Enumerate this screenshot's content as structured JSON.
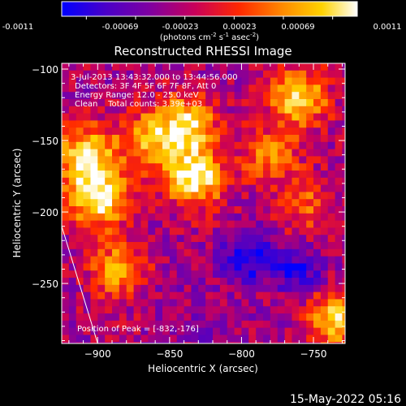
{
  "colorbar": {
    "ticks": [
      "-0.0011",
      "-0.00069",
      "-0.00023",
      "0.00023",
      "0.00069",
      "0.0011"
    ],
    "units_main": "(photons cm",
    "units_exp1": "-2",
    "units_mid": " s",
    "units_exp2": "-1",
    "units_mid2": " asec",
    "units_exp3": "-2",
    "units_end": ")"
  },
  "title": "Reconstructed RHESSI Image",
  "annotations": {
    "time": "3-Jul-2013 13:43:32.000 to 13:44:56.000",
    "detectors": "Detectors: 3F 4F 5F 6F 7F 8F, Att 0",
    "energy": "Energy Range: 12.0 - 25.0 keV",
    "clean": "Clean    Total counts: 3.39e+03",
    "peak": "Position of Peak = [-832,-176]"
  },
  "footer": {
    "date": "15-May-2022 05:16"
  },
  "chart_data": {
    "type": "heatmap",
    "title": "Reconstructed RHESSI Image",
    "xlabel": "Heliocentric X (arcsec)",
    "ylabel": "Heliocentric Y (arcsec)",
    "xlim": [
      -925,
      -728
    ],
    "ylim": [
      -292,
      -96
    ],
    "x_ticks": [
      -900,
      -850,
      -800,
      -750
    ],
    "y_ticks": [
      -100,
      -150,
      -200,
      -250
    ],
    "x_tick_labels": [
      "−900",
      "−850",
      "−800",
      "−750"
    ],
    "y_tick_labels": [
      "−100",
      "−150",
      "−200",
      "−250"
    ],
    "value_range": [
      -0.0011,
      0.0011
    ],
    "colormap": [
      "#0000ff",
      "#4a00c8",
      "#8000a0",
      "#c8005a",
      "#ff2800",
      "#ff8c00",
      "#ffd200",
      "#ffffff"
    ],
    "peak_position": [
      -832,
      -176
    ],
    "limb_line": [
      [
        -925,
        -210
      ],
      [
        -900,
        -292
      ]
    ],
    "hot_regions": [
      {
        "x": -900,
        "y": -190,
        "value": 0.0011
      },
      {
        "x": -908,
        "y": -160,
        "value": 0.0009
      },
      {
        "x": -885,
        "y": -240,
        "value": 0.0006
      },
      {
        "x": -832,
        "y": -176,
        "value": 0.0011
      },
      {
        "x": -838,
        "y": -140,
        "value": 0.0009
      },
      {
        "x": -865,
        "y": -150,
        "value": 0.0006
      },
      {
        "x": -760,
        "y": -120,
        "value": 0.0009
      },
      {
        "x": -755,
        "y": -195,
        "value": 0.0003
      },
      {
        "x": -735,
        "y": -275,
        "value": 0.0008
      },
      {
        "x": -780,
        "y": -160,
        "value": 0.0004
      }
    ],
    "cold_regions": [
      {
        "x": -795,
        "y": -232,
        "value": -0.0011
      },
      {
        "x": -760,
        "y": -240,
        "value": -0.0009
      },
      {
        "x": -850,
        "y": -250,
        "value": -0.0004
      },
      {
        "x": -820,
        "y": -280,
        "value": -0.0005
      }
    ]
  }
}
